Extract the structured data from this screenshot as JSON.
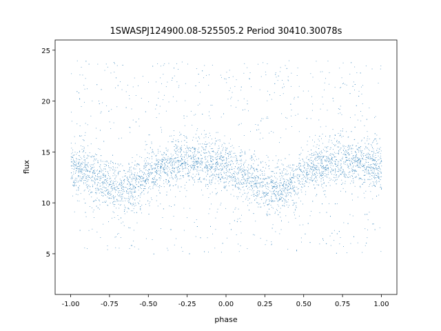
{
  "chart_data": {
    "type": "scatter",
    "title": "1SWASPJ124900.08-525505.2 Period 30410.30078s",
    "xlabel": "phase",
    "ylabel": "flux",
    "xlim": [
      -1.1,
      1.1
    ],
    "ylim": [
      1.0,
      26.0
    ],
    "xticks": [
      "-1.00",
      "-0.75",
      "-0.50",
      "-0.25",
      "0.00",
      "0.25",
      "0.50",
      "0.75",
      "1.00"
    ],
    "yticks": [
      "5",
      "10",
      "15",
      "20",
      "25"
    ],
    "grid": false,
    "marker_color": "#1f77b4",
    "series": [
      {
        "phase": [
          -1.0,
          -0.9,
          -0.8,
          -0.7,
          -0.65,
          -0.6,
          -0.5,
          -0.4,
          -0.3,
          -0.2,
          -0.1,
          0.0,
          0.1,
          0.2,
          0.3,
          0.35,
          0.4,
          0.5,
          0.6,
          0.7,
          0.8,
          0.9,
          1.0
        ],
        "flux_median": [
          13.5,
          13.0,
          12.3,
          11.5,
          11.4,
          11.8,
          12.8,
          13.6,
          14.0,
          14.1,
          13.8,
          13.4,
          12.8,
          12.0,
          11.5,
          11.4,
          11.8,
          12.8,
          13.6,
          14.0,
          14.1,
          13.9,
          13.5
        ],
        "flux_spread": 1.6,
        "flux_min": 2.0,
        "flux_max": 25.0
      }
    ]
  }
}
